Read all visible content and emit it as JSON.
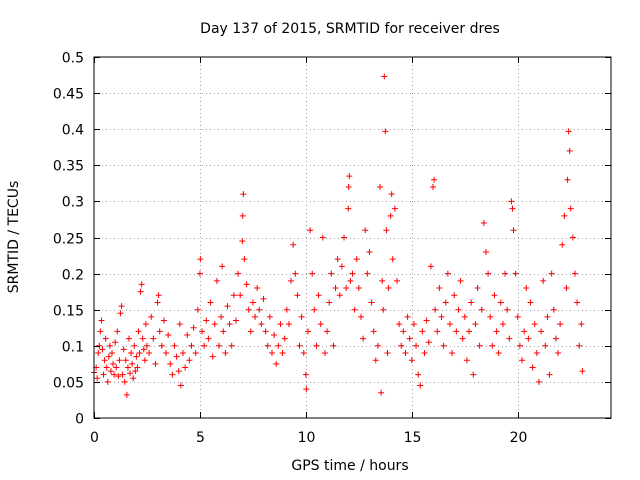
{
  "chart_data": {
    "type": "scatter",
    "title": "Day 137 of 2015, SRMTID for receiver dres",
    "xlabel": "GPS time / hours",
    "ylabel": "SRMTID / TECUs",
    "xlim": [
      0,
      24.4
    ],
    "ylim": [
      0,
      0.5
    ],
    "xticks": [
      0,
      5,
      10,
      15,
      20
    ],
    "xtick_labels": [
      "0",
      "5",
      "10",
      "15",
      "20"
    ],
    "yticks": [
      0,
      0.05,
      0.1,
      0.15,
      0.2,
      0.25,
      0.3,
      0.35,
      0.4,
      0.45,
      0.5
    ],
    "ytick_labels": [
      "0",
      "0.05",
      "0.1",
      "0.15",
      "0.2",
      "0.25",
      "0.3",
      "0.35",
      "0.4",
      "0.45",
      "0.5"
    ],
    "grid": true,
    "marker": "+",
    "color": "#ff0000",
    "series": [
      {
        "name": "SRMTID",
        "points": [
          [
            0.0,
            0.063
          ],
          [
            0.1,
            0.07
          ],
          [
            0.15,
            0.055
          ],
          [
            0.2,
            0.09
          ],
          [
            0.25,
            0.1
          ],
          [
            0.3,
            0.12
          ],
          [
            0.35,
            0.135
          ],
          [
            0.4,
            0.095
          ],
          [
            0.45,
            0.06
          ],
          [
            0.5,
            0.08
          ],
          [
            0.55,
            0.11
          ],
          [
            0.6,
            0.07
          ],
          [
            0.65,
            0.05
          ],
          [
            0.7,
            0.085
          ],
          [
            0.75,
            0.1
          ],
          [
            0.8,
            0.065
          ],
          [
            0.85,
            0.09
          ],
          [
            0.9,
            0.075
          ],
          [
            0.95,
            0.06
          ],
          [
            1.0,
            0.105
          ],
          [
            1.05,
            0.07
          ],
          [
            1.1,
            0.12
          ],
          [
            1.15,
            0.058
          ],
          [
            1.2,
            0.08
          ],
          [
            1.25,
            0.145
          ],
          [
            1.3,
            0.155
          ],
          [
            1.35,
            0.06
          ],
          [
            1.4,
            0.095
          ],
          [
            1.45,
            0.05
          ],
          [
            1.5,
            0.08
          ],
          [
            1.55,
            0.032
          ],
          [
            1.6,
            0.07
          ],
          [
            1.65,
            0.11
          ],
          [
            1.7,
            0.062
          ],
          [
            1.75,
            0.09
          ],
          [
            1.8,
            0.075
          ],
          [
            1.85,
            0.055
          ],
          [
            1.9,
            0.1
          ],
          [
            1.95,
            0.065
          ],
          [
            2.0,
            0.085
          ],
          [
            2.05,
            0.07
          ],
          [
            2.1,
            0.12
          ],
          [
            2.15,
            0.09
          ],
          [
            2.2,
            0.175
          ],
          [
            2.25,
            0.185
          ],
          [
            2.3,
            0.11
          ],
          [
            2.35,
            0.095
          ],
          [
            2.4,
            0.08
          ],
          [
            2.45,
            0.13
          ],
          [
            2.5,
            0.1
          ],
          [
            2.6,
            0.09
          ],
          [
            2.7,
            0.14
          ],
          [
            2.8,
            0.11
          ],
          [
            2.9,
            0.075
          ],
          [
            3.0,
            0.16
          ],
          [
            3.05,
            0.17
          ],
          [
            3.1,
            0.12
          ],
          [
            3.2,
            0.1
          ],
          [
            3.3,
            0.135
          ],
          [
            3.4,
            0.09
          ],
          [
            3.5,
            0.115
          ],
          [
            3.6,
            0.075
          ],
          [
            3.7,
            0.06
          ],
          [
            3.8,
            0.1
          ],
          [
            3.9,
            0.085
          ],
          [
            4.0,
            0.065
          ],
          [
            4.05,
            0.13
          ],
          [
            4.1,
            0.045
          ],
          [
            4.2,
            0.09
          ],
          [
            4.3,
            0.07
          ],
          [
            4.4,
            0.115
          ],
          [
            4.5,
            0.08
          ],
          [
            4.6,
            0.1
          ],
          [
            4.7,
            0.125
          ],
          [
            4.8,
            0.09
          ],
          [
            4.9,
            0.15
          ],
          [
            5.0,
            0.2
          ],
          [
            5.02,
            0.22
          ],
          [
            5.1,
            0.12
          ],
          [
            5.2,
            0.1
          ],
          [
            5.3,
            0.135
          ],
          [
            5.4,
            0.11
          ],
          [
            5.5,
            0.16
          ],
          [
            5.6,
            0.085
          ],
          [
            5.7,
            0.13
          ],
          [
            5.8,
            0.19
          ],
          [
            5.9,
            0.1
          ],
          [
            6.0,
            0.14
          ],
          [
            6.05,
            0.21
          ],
          [
            6.1,
            0.12
          ],
          [
            6.2,
            0.09
          ],
          [
            6.3,
            0.155
          ],
          [
            6.4,
            0.13
          ],
          [
            6.5,
            0.1
          ],
          [
            6.6,
            0.17
          ],
          [
            6.7,
            0.135
          ],
          [
            6.8,
            0.2
          ],
          [
            6.9,
            0.17
          ],
          [
            7.0,
            0.245
          ],
          [
            7.02,
            0.28
          ],
          [
            7.05,
            0.31
          ],
          [
            7.1,
            0.22
          ],
          [
            7.2,
            0.185
          ],
          [
            7.3,
            0.15
          ],
          [
            7.4,
            0.12
          ],
          [
            7.5,
            0.16
          ],
          [
            7.6,
            0.14
          ],
          [
            7.7,
            0.18
          ],
          [
            7.8,
            0.15
          ],
          [
            7.9,
            0.13
          ],
          [
            8.0,
            0.165
          ],
          [
            8.1,
            0.12
          ],
          [
            8.2,
            0.1
          ],
          [
            8.3,
            0.14
          ],
          [
            8.4,
            0.09
          ],
          [
            8.5,
            0.115
          ],
          [
            8.6,
            0.075
          ],
          [
            8.7,
            0.1
          ],
          [
            8.8,
            0.13
          ],
          [
            8.9,
            0.09
          ],
          [
            9.0,
            0.11
          ],
          [
            9.1,
            0.15
          ],
          [
            9.2,
            0.13
          ],
          [
            9.3,
            0.19
          ],
          [
            9.4,
            0.24
          ],
          [
            9.5,
            0.2
          ],
          [
            9.6,
            0.17
          ],
          [
            9.7,
            0.1
          ],
          [
            9.8,
            0.14
          ],
          [
            9.9,
            0.09
          ],
          [
            10.0,
            0.06
          ],
          [
            10.02,
            0.04
          ],
          [
            10.1,
            0.12
          ],
          [
            10.2,
            0.26
          ],
          [
            10.3,
            0.2
          ],
          [
            10.4,
            0.15
          ],
          [
            10.5,
            0.1
          ],
          [
            10.6,
            0.17
          ],
          [
            10.7,
            0.13
          ],
          [
            10.8,
            0.25
          ],
          [
            10.9,
            0.09
          ],
          [
            11.0,
            0.12
          ],
          [
            11.1,
            0.16
          ],
          [
            11.2,
            0.2
          ],
          [
            11.3,
            0.1
          ],
          [
            11.4,
            0.18
          ],
          [
            11.5,
            0.22
          ],
          [
            11.6,
            0.17
          ],
          [
            11.7,
            0.21
          ],
          [
            11.8,
            0.25
          ],
          [
            11.9,
            0.18
          ],
          [
            12.0,
            0.29
          ],
          [
            12.02,
            0.32
          ],
          [
            12.05,
            0.335
          ],
          [
            12.1,
            0.19
          ],
          [
            12.2,
            0.2
          ],
          [
            12.3,
            0.15
          ],
          [
            12.4,
            0.22
          ],
          [
            12.5,
            0.18
          ],
          [
            12.6,
            0.14
          ],
          [
            12.7,
            0.11
          ],
          [
            12.8,
            0.26
          ],
          [
            12.9,
            0.2
          ],
          [
            13.0,
            0.23
          ],
          [
            13.1,
            0.16
          ],
          [
            13.2,
            0.12
          ],
          [
            13.3,
            0.08
          ],
          [
            13.4,
            0.1
          ],
          [
            13.5,
            0.32
          ],
          [
            13.55,
            0.035
          ],
          [
            13.6,
            0.19
          ],
          [
            13.65,
            0.15
          ],
          [
            13.7,
            0.473
          ],
          [
            13.75,
            0.397
          ],
          [
            13.8,
            0.26
          ],
          [
            13.85,
            0.09
          ],
          [
            13.9,
            0.18
          ],
          [
            14.0,
            0.28
          ],
          [
            14.05,
            0.31
          ],
          [
            14.1,
            0.22
          ],
          [
            14.2,
            0.29
          ],
          [
            14.3,
            0.19
          ],
          [
            14.4,
            0.13
          ],
          [
            14.5,
            0.1
          ],
          [
            14.6,
            0.12
          ],
          [
            14.7,
            0.09
          ],
          [
            14.8,
            0.14
          ],
          [
            14.9,
            0.11
          ],
          [
            15.0,
            0.08
          ],
          [
            15.1,
            0.13
          ],
          [
            15.2,
            0.1
          ],
          [
            15.3,
            0.06
          ],
          [
            15.4,
            0.045
          ],
          [
            15.5,
            0.12
          ],
          [
            15.6,
            0.09
          ],
          [
            15.7,
            0.135
          ],
          [
            15.8,
            0.105
          ],
          [
            15.9,
            0.21
          ],
          [
            16.0,
            0.32
          ],
          [
            16.05,
            0.33
          ],
          [
            16.1,
            0.15
          ],
          [
            16.2,
            0.12
          ],
          [
            16.3,
            0.18
          ],
          [
            16.4,
            0.14
          ],
          [
            16.5,
            0.1
          ],
          [
            16.6,
            0.16
          ],
          [
            16.7,
            0.2
          ],
          [
            16.8,
            0.13
          ],
          [
            16.9,
            0.09
          ],
          [
            17.0,
            0.17
          ],
          [
            17.1,
            0.12
          ],
          [
            17.2,
            0.15
          ],
          [
            17.3,
            0.19
          ],
          [
            17.4,
            0.11
          ],
          [
            17.5,
            0.14
          ],
          [
            17.6,
            0.08
          ],
          [
            17.7,
            0.12
          ],
          [
            17.8,
            0.16
          ],
          [
            17.9,
            0.06
          ],
          [
            18.0,
            0.13
          ],
          [
            18.1,
            0.18
          ],
          [
            18.2,
            0.1
          ],
          [
            18.3,
            0.15
          ],
          [
            18.4,
            0.27
          ],
          [
            18.5,
            0.23
          ],
          [
            18.6,
            0.2
          ],
          [
            18.7,
            0.14
          ],
          [
            18.8,
            0.1
          ],
          [
            18.9,
            0.17
          ],
          [
            19.0,
            0.12
          ],
          [
            19.1,
            0.09
          ],
          [
            19.2,
            0.16
          ],
          [
            19.3,
            0.13
          ],
          [
            19.4,
            0.2
          ],
          [
            19.5,
            0.15
          ],
          [
            19.6,
            0.11
          ],
          [
            19.7,
            0.3
          ],
          [
            19.75,
            0.29
          ],
          [
            19.8,
            0.26
          ],
          [
            19.9,
            0.2
          ],
          [
            20.0,
            0.14
          ],
          [
            20.1,
            0.1
          ],
          [
            20.2,
            0.08
          ],
          [
            20.3,
            0.12
          ],
          [
            20.4,
            0.18
          ],
          [
            20.5,
            0.11
          ],
          [
            20.6,
            0.16
          ],
          [
            20.7,
            0.07
          ],
          [
            20.8,
            0.13
          ],
          [
            20.9,
            0.09
          ],
          [
            21.0,
            0.05
          ],
          [
            21.1,
            0.12
          ],
          [
            21.2,
            0.19
          ],
          [
            21.3,
            0.1
          ],
          [
            21.4,
            0.14
          ],
          [
            21.5,
            0.06
          ],
          [
            21.6,
            0.2
          ],
          [
            21.7,
            0.15
          ],
          [
            21.8,
            0.11
          ],
          [
            21.9,
            0.09
          ],
          [
            22.0,
            0.13
          ],
          [
            22.1,
            0.24
          ],
          [
            22.2,
            0.28
          ],
          [
            22.3,
            0.18
          ],
          [
            22.35,
            0.33
          ],
          [
            22.4,
            0.397
          ],
          [
            22.45,
            0.37
          ],
          [
            22.5,
            0.29
          ],
          [
            22.6,
            0.25
          ],
          [
            22.7,
            0.2
          ],
          [
            22.8,
            0.16
          ],
          [
            22.9,
            0.1
          ],
          [
            23.0,
            0.13
          ],
          [
            23.05,
            0.065
          ]
        ]
      }
    ]
  }
}
